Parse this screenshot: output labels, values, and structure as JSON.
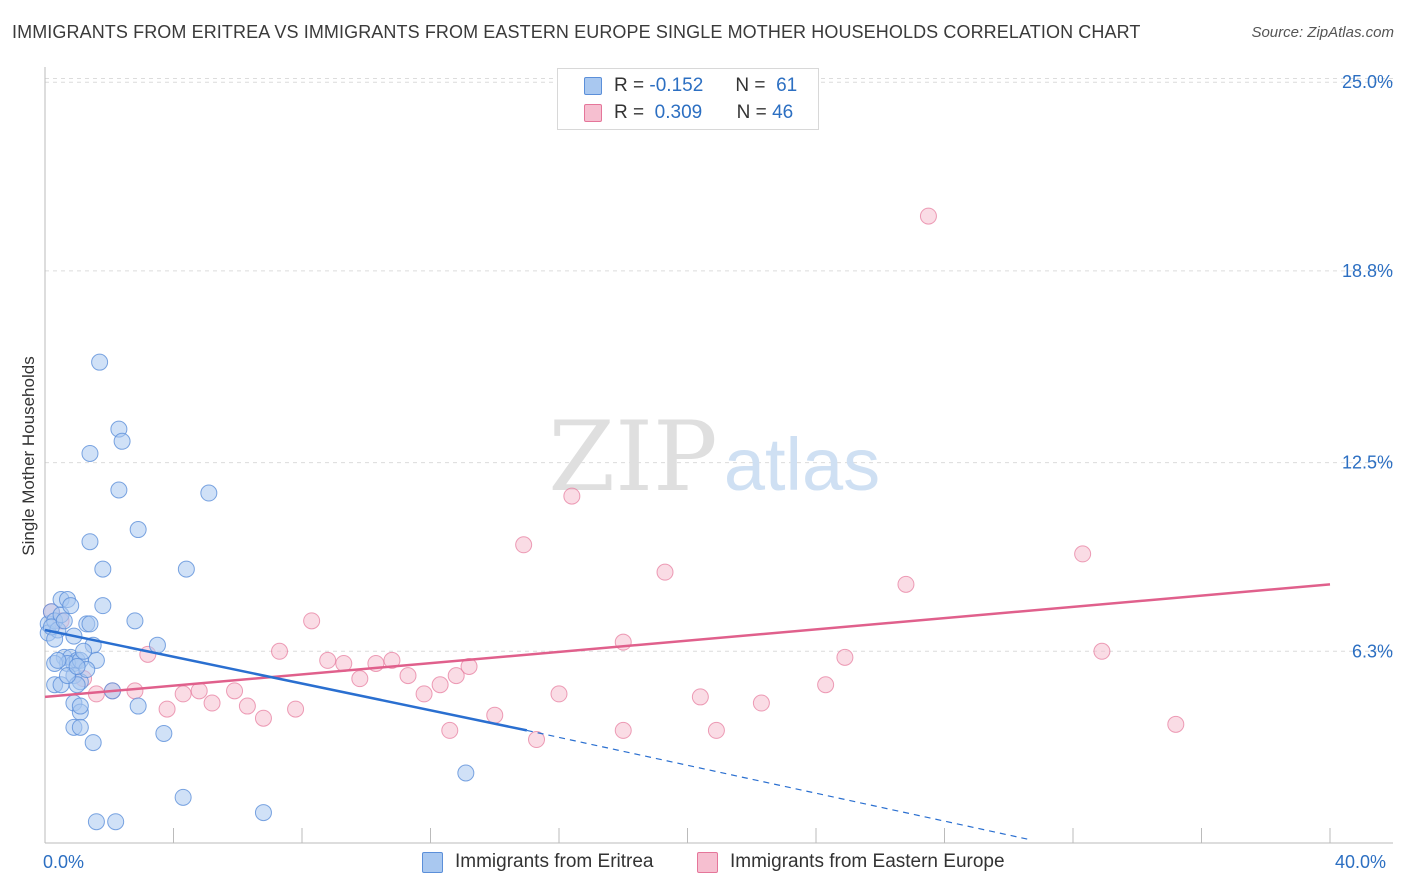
{
  "header": {
    "title": "IMMIGRANTS FROM ERITREA VS IMMIGRANTS FROM EASTERN EUROPE SINGLE MOTHER HOUSEHOLDS CORRELATION CHART",
    "source": "Source: ZipAtlas.com"
  },
  "watermark": {
    "zip": "ZIP",
    "atlas": "atlas"
  },
  "legend": {
    "rows": [
      {
        "r_label": "R =",
        "r_value": "-0.152",
        "n_label": "N =",
        "n_value": "61"
      },
      {
        "r_label": "R =",
        "r_value": "0.309",
        "n_label": "N =",
        "n_value": "46"
      }
    ]
  },
  "chart_data": {
    "type": "scatter",
    "title": "IMMIGRANTS FROM ERITREA VS IMMIGRANTS FROM EASTERN EUROPE SINGLE MOTHER HOUSEHOLDS CORRELATION CHART",
    "xlabel": "",
    "ylabel": "Single Mother Households",
    "xlim": [
      0,
      40
    ],
    "ylim": [
      0,
      25.5
    ],
    "x_tick_labels": [
      "0.0%",
      "40.0%"
    ],
    "y_tick_labels": [
      "25.0%",
      "18.8%",
      "12.5%",
      "6.3%"
    ],
    "y_ticks": [
      25.0,
      18.8,
      12.5,
      6.3
    ],
    "grid": true,
    "legend_position": "top-center",
    "colors": {
      "eritrea": "#5b8fd9",
      "eritrea_fill": "#a9c8f0",
      "eastern_europe": "#e5769a",
      "eastern_europe_fill": "#f6bfd0"
    },
    "series": [
      {
        "name": "Immigrants from Eritrea",
        "r": -0.152,
        "n": 61,
        "trend": {
          "x": [
            0,
            15
          ],
          "y": [
            7.0,
            3.7
          ],
          "dashed_to": [
            30.7,
            0.1
          ]
        },
        "points": [
          [
            0.1,
            7.2
          ],
          [
            0.2,
            7.6
          ],
          [
            0.1,
            6.9
          ],
          [
            0.3,
            7.3
          ],
          [
            0.4,
            7.0
          ],
          [
            0.5,
            7.5
          ],
          [
            0.2,
            7.1
          ],
          [
            0.6,
            7.3
          ],
          [
            0.3,
            6.7
          ],
          [
            0.5,
            8.0
          ],
          [
            0.7,
            8.0
          ],
          [
            0.8,
            7.8
          ],
          [
            1.3,
            7.2
          ],
          [
            1.4,
            7.2
          ],
          [
            1.8,
            7.8
          ],
          [
            1.5,
            6.5
          ],
          [
            0.6,
            6.1
          ],
          [
            0.8,
            6.1
          ],
          [
            0.9,
            5.9
          ],
          [
            1.0,
            6.0
          ],
          [
            0.7,
            5.9
          ],
          [
            1.1,
            6.0
          ],
          [
            0.9,
            5.5
          ],
          [
            1.1,
            5.3
          ],
          [
            1.6,
            6.0
          ],
          [
            0.3,
            5.9
          ],
          [
            0.3,
            5.2
          ],
          [
            0.5,
            5.2
          ],
          [
            1.0,
            5.2
          ],
          [
            0.9,
            4.6
          ],
          [
            1.1,
            4.3
          ],
          [
            1.1,
            4.5
          ],
          [
            0.9,
            3.8
          ],
          [
            1.1,
            3.8
          ],
          [
            1.5,
            3.3
          ],
          [
            2.1,
            5.0
          ],
          [
            2.9,
            4.5
          ],
          [
            3.7,
            3.6
          ],
          [
            1.7,
            15.8
          ],
          [
            2.3,
            13.6
          ],
          [
            2.4,
            13.2
          ],
          [
            1.4,
            12.8
          ],
          [
            2.3,
            11.6
          ],
          [
            5.1,
            11.5
          ],
          [
            2.9,
            10.3
          ],
          [
            1.4,
            9.9
          ],
          [
            1.8,
            9.0
          ],
          [
            4.4,
            9.0
          ],
          [
            2.8,
            7.3
          ],
          [
            3.5,
            6.5
          ],
          [
            0.9,
            6.8
          ],
          [
            1.2,
            6.3
          ],
          [
            4.3,
            1.5
          ],
          [
            6.8,
            1.0
          ],
          [
            13.1,
            2.3
          ],
          [
            1.6,
            0.7
          ],
          [
            2.2,
            0.7
          ],
          [
            0.4,
            6.0
          ],
          [
            1.3,
            5.7
          ],
          [
            0.7,
            5.5
          ],
          [
            1.0,
            5.8
          ]
        ]
      },
      {
        "name": "Immigrants from Eastern Europe",
        "r": 0.309,
        "n": 46,
        "trend": {
          "x": [
            0,
            40
          ],
          "y": [
            4.8,
            8.5
          ]
        },
        "points": [
          [
            0.2,
            7.6
          ],
          [
            0.5,
            7.3
          ],
          [
            1.2,
            5.4
          ],
          [
            1.6,
            4.9
          ],
          [
            2.1,
            5.0
          ],
          [
            2.8,
            5.0
          ],
          [
            3.2,
            6.2
          ],
          [
            3.8,
            4.4
          ],
          [
            4.3,
            4.9
          ],
          [
            4.8,
            5.0
          ],
          [
            5.2,
            4.6
          ],
          [
            5.9,
            5.0
          ],
          [
            6.3,
            4.5
          ],
          [
            6.8,
            4.1
          ],
          [
            7.3,
            6.3
          ],
          [
            7.8,
            4.4
          ],
          [
            8.3,
            7.3
          ],
          [
            8.8,
            6.0
          ],
          [
            9.3,
            5.9
          ],
          [
            9.8,
            5.4
          ],
          [
            10.3,
            5.9
          ],
          [
            10.8,
            6.0
          ],
          [
            11.3,
            5.5
          ],
          [
            11.8,
            4.9
          ],
          [
            12.3,
            5.2
          ],
          [
            12.8,
            5.5
          ],
          [
            13.2,
            5.8
          ],
          [
            12.6,
            3.7
          ],
          [
            14.0,
            4.2
          ],
          [
            14.9,
            9.8
          ],
          [
            15.3,
            3.4
          ],
          [
            16.0,
            4.9
          ],
          [
            16.4,
            11.4
          ],
          [
            18.0,
            6.6
          ],
          [
            18.0,
            3.7
          ],
          [
            19.3,
            8.9
          ],
          [
            20.4,
            4.8
          ],
          [
            20.9,
            3.7
          ],
          [
            22.3,
            4.6
          ],
          [
            24.3,
            5.2
          ],
          [
            24.9,
            6.1
          ],
          [
            26.8,
            8.5
          ],
          [
            27.5,
            20.6
          ],
          [
            32.3,
            9.5
          ],
          [
            32.9,
            6.3
          ],
          [
            35.2,
            3.9
          ]
        ]
      }
    ]
  },
  "bottom_legend": {
    "items": [
      {
        "label": "Immigrants from Eritrea"
      },
      {
        "label": "Immigrants from Eastern Europe"
      }
    ]
  }
}
